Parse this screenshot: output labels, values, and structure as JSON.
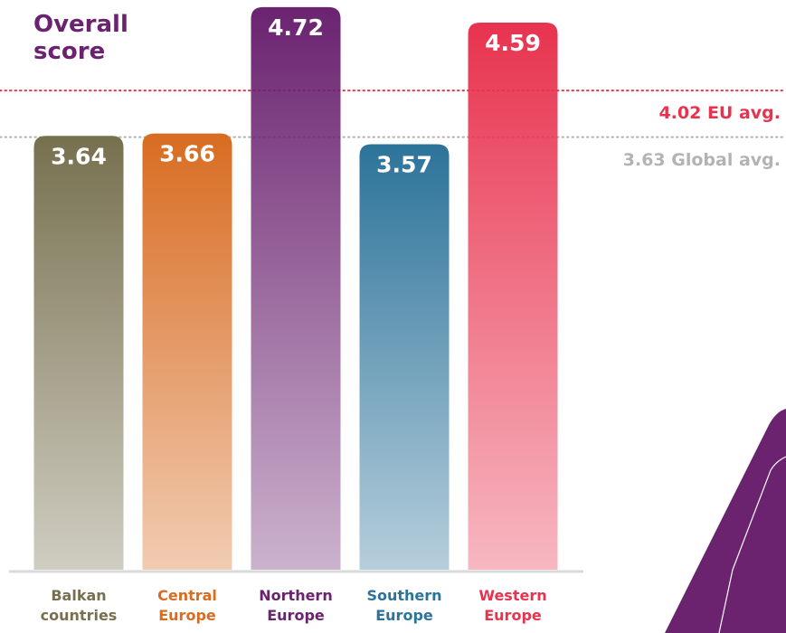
{
  "chart_data": {
    "type": "bar",
    "title": "Overall score",
    "categories": [
      "Balkan countries",
      "Central Europe",
      "Northern Europe",
      "Southern Europe",
      "Western Europe"
    ],
    "values": [
      3.64,
      3.66,
      4.72,
      3.57,
      4.59
    ],
    "colors": [
      "#77704f",
      "#d86c21",
      "#6b2370",
      "#2c739a",
      "#e8334f"
    ],
    "ylim": [
      0,
      4.78
    ],
    "reference_lines": [
      {
        "value": 4.02,
        "label": "4.02 EU avg.",
        "color": "#e8334f"
      },
      {
        "value": 3.63,
        "label": "3.63 Global avg.",
        "color": "#b3b3b3"
      }
    ]
  }
}
